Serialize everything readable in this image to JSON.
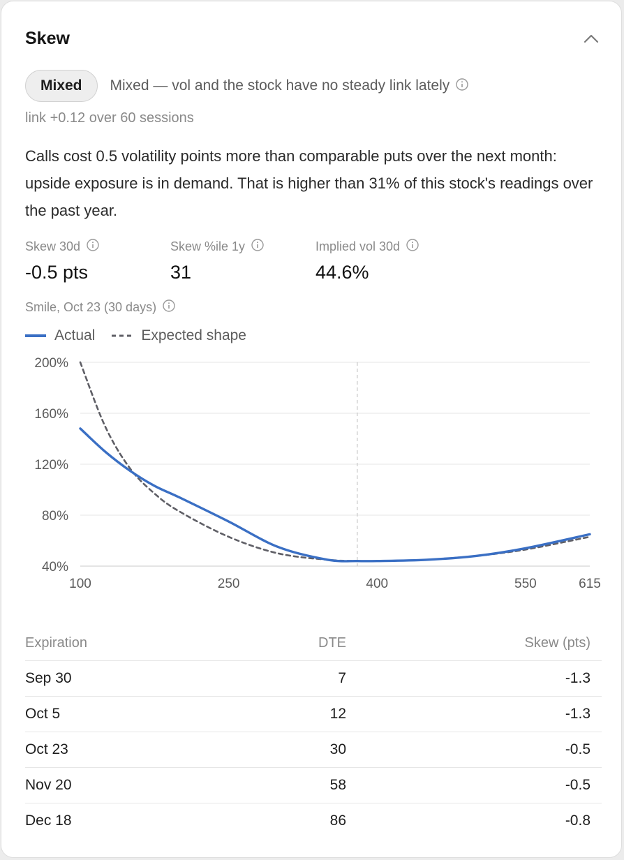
{
  "card": {
    "title": "Skew",
    "collapse_icon": "chevron-up-icon"
  },
  "regime": {
    "badge": "Mixed",
    "description": "Mixed — vol and the stock have no steady link lately",
    "link_stat": "link +0.12 over 60 sessions"
  },
  "summary": "Calls cost 0.5 volatility points more than comparable puts over the next month: upside exposure is in demand. That is higher than 31% of this stock's readings over the past year.",
  "metrics": [
    {
      "label": "Skew 30d",
      "value": "-0.5 pts"
    },
    {
      "label": "Skew %ile 1y",
      "value": "31"
    },
    {
      "label": "Implied vol 30d",
      "value": "44.6%"
    }
  ],
  "smile": {
    "label": "Smile, Oct 23 (30 days)",
    "legend": {
      "actual": "Actual",
      "expected": "Expected shape"
    }
  },
  "colors": {
    "actual": "#3a6fc4",
    "expected": "#5f5f66",
    "grid": "#e6e6e6",
    "spot_line": "#c8c8c8"
  },
  "chart_data": {
    "type": "line",
    "xlim": [
      100,
      615
    ],
    "ylim": [
      40,
      200
    ],
    "x_ticks": [
      100,
      250,
      400,
      550,
      615
    ],
    "y_ticks": [
      40,
      80,
      120,
      160,
      200
    ],
    "y_tick_labels": [
      "40%",
      "80%",
      "120%",
      "160%",
      "200%"
    ],
    "spot_marker": 380,
    "grid": true,
    "legend_position": "top-left",
    "series": [
      {
        "name": "Actual",
        "style": "solid",
        "x": [
          100,
          125,
          150,
          175,
          200,
          250,
          300,
          350,
          380,
          400,
          450,
          500,
          550,
          615
        ],
        "y": [
          148,
          130,
          115,
          103,
          94,
          75,
          55,
          45,
          44,
          44,
          45,
          48,
          54,
          65
        ]
      },
      {
        "name": "Expected shape",
        "style": "dashed",
        "x": [
          100,
          125,
          150,
          175,
          200,
          250,
          300,
          350,
          380,
          400,
          450,
          500,
          550,
          615
        ],
        "y": [
          200,
          150,
          117,
          97,
          83,
          63,
          50,
          45,
          44,
          44,
          45,
          48,
          53,
          63
        ]
      }
    ]
  },
  "table": {
    "headers": [
      "Expiration",
      "DTE",
      "Skew (pts)"
    ],
    "rows": [
      [
        "Sep 30",
        "7",
        "-1.3"
      ],
      [
        "Oct 5",
        "12",
        "-1.3"
      ],
      [
        "Oct 23",
        "30",
        "-0.5"
      ],
      [
        "Nov 20",
        "58",
        "-0.5"
      ],
      [
        "Dec 18",
        "86",
        "-0.8"
      ]
    ]
  }
}
